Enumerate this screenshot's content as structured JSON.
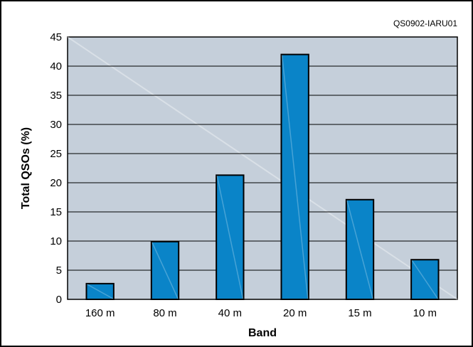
{
  "figure_id": "QS0902-IARU01",
  "colors": {
    "plot_background": "#c5cfda",
    "bar_fill": "#0a84c8",
    "bar_stroke": "#000000",
    "gridline": "#000000"
  },
  "chart_data": {
    "type": "bar",
    "title": "",
    "xlabel": "Band",
    "ylabel": "Total QSOs (%)",
    "categories": [
      "160 m",
      "80 m",
      "40 m",
      "20 m",
      "15 m",
      "10 m"
    ],
    "values": [
      2.7,
      9.9,
      21.3,
      42.0,
      17.1,
      6.8
    ],
    "ylim": [
      0,
      45
    ],
    "yticks": [
      0,
      5,
      10,
      15,
      20,
      25,
      30,
      35,
      40,
      45
    ],
    "grid": true,
    "legend": "none"
  }
}
